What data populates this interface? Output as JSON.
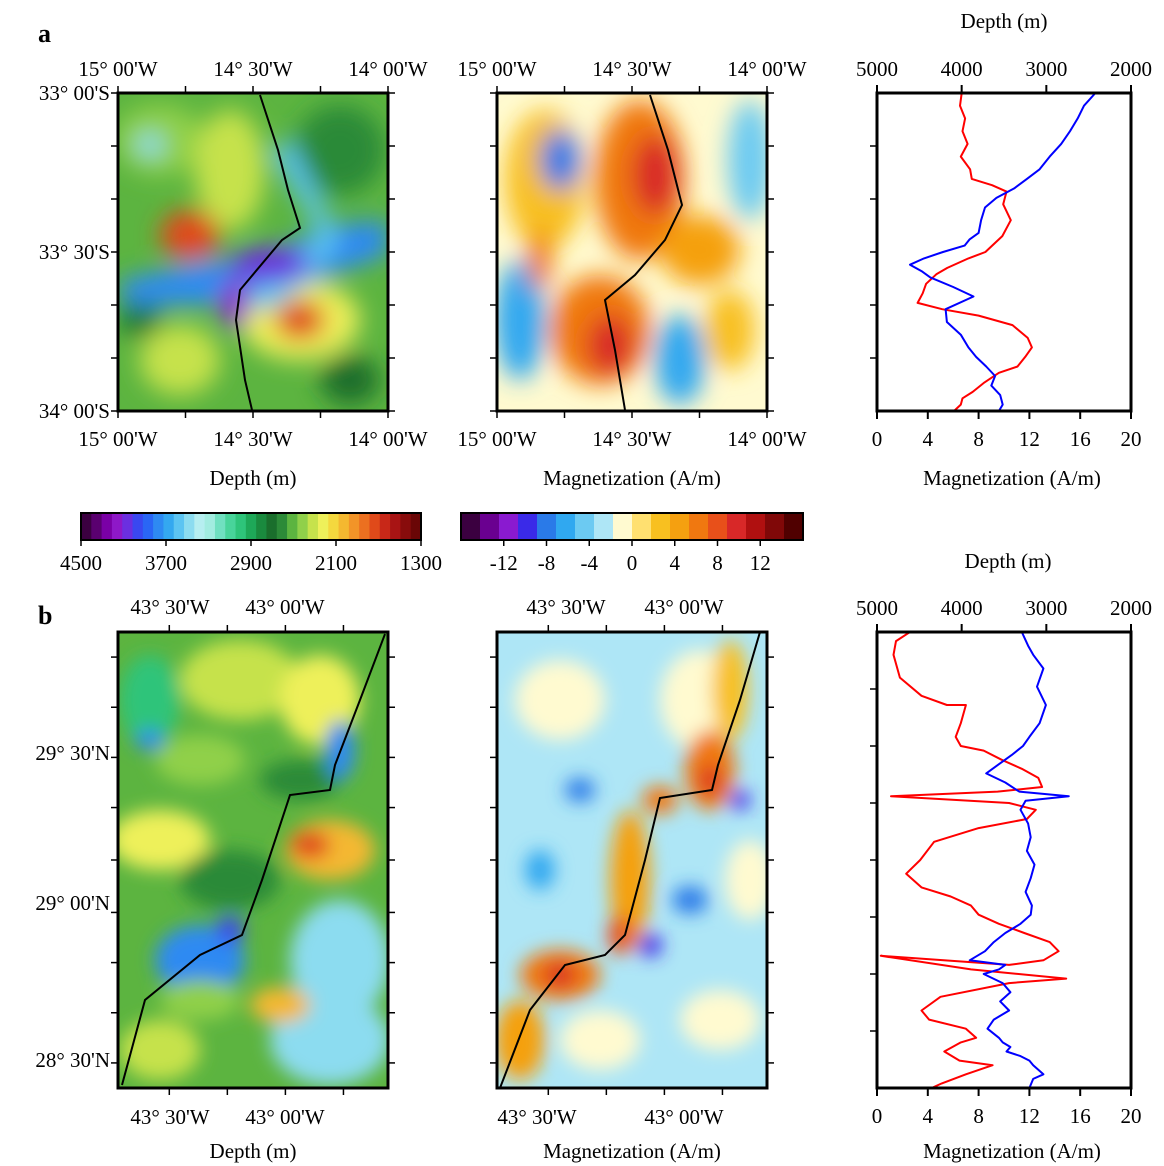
{
  "panels": {
    "a": {
      "letter": "a",
      "map_lon_ticks": [
        "15° 00'W",
        "14° 30'W",
        "14° 00'W"
      ],
      "map_lat_ticks": [
        "33° 00'S",
        "33° 30'S",
        "34° 00'S"
      ],
      "depth_map_xlabel": "Depth (m)",
      "mag_map_xlabel": "Magnetization (A/m)",
      "profile_depth_title": "Depth (m)",
      "profile_mag_title": "Magnetization (A/m)"
    },
    "b": {
      "letter": "b",
      "map_lon_ticks": [
        "43° 30'W",
        "43° 00'W"
      ],
      "map_lat_ticks": [
        "29° 30'N",
        "29° 00'N",
        "28° 30'N"
      ],
      "depth_map_xlabel": "Depth (m)",
      "mag_map_xlabel": "Magnetization (A/m)",
      "profile_depth_title": "Depth (m)",
      "profile_mag_title": "Magnetization (A/m)"
    }
  },
  "colorbars": {
    "depth": {
      "tick_labels": [
        "4500",
        "3700",
        "2900",
        "2100",
        "1300"
      ],
      "range": [
        4500,
        1300
      ],
      "colors": [
        "#3b0040",
        "#5a0070",
        "#7a00a6",
        "#8e18c8",
        "#6b2fe0",
        "#3a48f0",
        "#2a66f5",
        "#2e8af2",
        "#34a8f0",
        "#5cc4f2",
        "#8cdcf0",
        "#b6eef0",
        "#a2ece0",
        "#70e0c0",
        "#48d49a",
        "#2ec47a",
        "#1ea858",
        "#1a8a3e",
        "#1a6e2c",
        "#2c8a38",
        "#5cb440",
        "#90d04a",
        "#c6e24c",
        "#eef05a",
        "#f4d83e",
        "#f4b830",
        "#f29428",
        "#ec7020",
        "#e04a1a",
        "#c82818",
        "#a81414",
        "#880c0c",
        "#6a0606"
      ]
    },
    "magnetization": {
      "tick_labels": [
        "-12",
        "-8",
        "-4",
        "0",
        "4",
        "8",
        "12"
      ],
      "range": [
        -16,
        16
      ],
      "colors": [
        "#3b0040",
        "#6a0090",
        "#8a1ad0",
        "#3a2ae8",
        "#2a7ae8",
        "#30a8f0",
        "#6ccaf2",
        "#aee6f6",
        "#fffad0",
        "#ffe070",
        "#f8c020",
        "#f5a010",
        "#f07810",
        "#e8501a",
        "#d82828",
        "#b01010",
        "#800808",
        "#500000"
      ]
    }
  },
  "chart_data": [
    {
      "type": "line",
      "panel": "a",
      "title": "",
      "xlabel": "Magnetization (A/m)",
      "x_ticks": [
        0,
        4,
        8,
        12,
        16,
        20
      ],
      "xlim": [
        0,
        20
      ],
      "x2label": "Depth (m)",
      "x2_ticks": [
        5000,
        4000,
        3000,
        2000
      ],
      "x2lim": [
        5000,
        2000
      ],
      "y_normalized_range": [
        0,
        1
      ],
      "series": [
        {
          "color": "#ff0000",
          "axis": "depth",
          "x": [
            4000,
            4020,
            3960,
            3990,
            3930,
            4010,
            3900,
            3880,
            3640,
            3470,
            3510,
            3420,
            3520,
            3720,
            3920,
            4170,
            4300,
            4420,
            4460,
            4520,
            4230,
            3800,
            3400,
            3220,
            3170,
            3250,
            3340,
            3560,
            3730,
            3870,
            3990,
            4010,
            4090
          ],
          "y": [
            0,
            0.04,
            0.08,
            0.12,
            0.16,
            0.2,
            0.24,
            0.27,
            0.29,
            0.31,
            0.35,
            0.4,
            0.45,
            0.5,
            0.52,
            0.55,
            0.57,
            0.6,
            0.63,
            0.66,
            0.68,
            0.7,
            0.73,
            0.77,
            0.8,
            0.83,
            0.86,
            0.88,
            0.91,
            0.94,
            0.96,
            0.98,
            1
          ]
        },
        {
          "color": "#0000ff",
          "axis": "magnetization",
          "x": [
            17.2,
            16.3,
            15.8,
            15.2,
            14.5,
            13.6,
            12.8,
            11.8,
            10.8,
            9.4,
            8.5,
            8.2,
            8.0,
            7.3,
            6.9,
            5.2,
            3.7,
            2.6,
            3.5,
            4.2,
            6.0,
            7.6,
            5.4,
            5.5,
            6.6,
            7.2,
            7.8,
            8.6,
            9.3,
            9.0,
            9.7,
            9.9,
            9.6
          ],
          "y": [
            0,
            0.04,
            0.08,
            0.12,
            0.16,
            0.2,
            0.24,
            0.27,
            0.3,
            0.33,
            0.36,
            0.4,
            0.44,
            0.46,
            0.48,
            0.5,
            0.52,
            0.54,
            0.56,
            0.58,
            0.61,
            0.64,
            0.68,
            0.72,
            0.76,
            0.8,
            0.83,
            0.86,
            0.89,
            0.92,
            0.95,
            0.98,
            1
          ]
        }
      ]
    },
    {
      "type": "line",
      "panel": "b",
      "title": "",
      "xlabel": "Magnetization (A/m)",
      "x_ticks": [
        0,
        4,
        8,
        12,
        16,
        20
      ],
      "xlim": [
        0,
        20
      ],
      "x2label": "Depth (m)",
      "x2_ticks": [
        5000,
        4000,
        3000,
        2000
      ],
      "x2lim": [
        5000,
        2000
      ],
      "y_normalized_range": [
        0,
        1
      ],
      "series": [
        {
          "color": "#ff0000",
          "axis": "magnetization",
          "x": [
            2.6,
            1.5,
            1.3,
            1.8,
            3.5,
            5.5,
            7.0,
            6.6,
            6.2,
            6.6,
            8.4,
            9.8,
            11.4,
            12.7,
            13.0,
            9.5,
            1.1,
            10.4,
            12.5,
            11.8,
            8.0,
            4.5,
            3.4,
            2.3,
            3.5,
            5.8,
            7.4,
            8.0,
            9.6,
            11.6,
            13.6,
            14.3,
            13.1,
            10.4,
            0.3,
            7.4,
            14.9,
            10.4,
            5.0,
            3.5,
            4.1,
            7.0,
            7.8,
            6.6,
            5.3,
            6.5,
            9.1,
            7.0,
            5.1,
            4.3
          ],
          "y": [
            0,
            0.02,
            0.05,
            0.1,
            0.14,
            0.16,
            0.16,
            0.2,
            0.23,
            0.25,
            0.26,
            0.28,
            0.3,
            0.32,
            0.34,
            0.35,
            0.36,
            0.375,
            0.39,
            0.41,
            0.43,
            0.46,
            0.5,
            0.53,
            0.56,
            0.58,
            0.6,
            0.62,
            0.64,
            0.66,
            0.68,
            0.7,
            0.72,
            0.73,
            0.71,
            0.74,
            0.76,
            0.77,
            0.8,
            0.83,
            0.85,
            0.87,
            0.89,
            0.9,
            0.92,
            0.94,
            0.95,
            0.97,
            0.99,
            1
          ]
        },
        {
          "color": "#0000ff",
          "axis": "magnetization",
          "x": [
            11.4,
            11.9,
            12.3,
            13.1,
            12.6,
            13.3,
            12.8,
            12.0,
            11.5,
            10.6,
            9.6,
            8.6,
            10.1,
            11.2,
            15.1,
            11.7,
            11.3,
            11.9,
            12.1,
            11.8,
            12.4,
            12.1,
            11.7,
            12.2,
            12.1,
            11.3,
            10.1,
            9.2,
            8.5,
            7.3,
            10.1,
            9.6,
            8.4,
            9.9,
            10.5,
            9.7,
            10.4,
            9.2,
            8.7,
            9.6,
            9.9,
            10.5,
            10.2,
            11.3,
            12.0,
            12.3,
            13.1,
            12.3,
            12.0
          ],
          "y": [
            0,
            0.03,
            0.05,
            0.08,
            0.12,
            0.16,
            0.2,
            0.23,
            0.25,
            0.27,
            0.29,
            0.31,
            0.33,
            0.35,
            0.36,
            0.37,
            0.39,
            0.42,
            0.45,
            0.48,
            0.51,
            0.54,
            0.57,
            0.6,
            0.62,
            0.64,
            0.66,
            0.68,
            0.7,
            0.72,
            0.73,
            0.74,
            0.75,
            0.77,
            0.79,
            0.81,
            0.83,
            0.85,
            0.87,
            0.89,
            0.9,
            0.91,
            0.92,
            0.93,
            0.94,
            0.95,
            0.97,
            0.98,
            1
          ]
        }
      ]
    }
  ]
}
